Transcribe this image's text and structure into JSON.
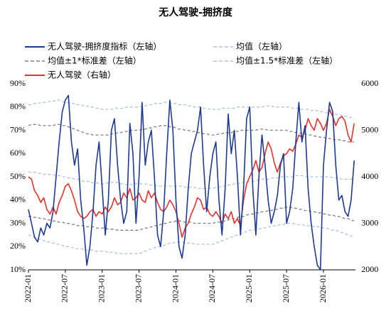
{
  "chart_data": {
    "type": "line",
    "title": "无人驾驶-拥挤度",
    "categories": [
      "2022-01",
      null,
      null,
      null,
      null,
      null,
      null,
      null,
      null,
      null,
      null,
      null,
      "2022-07",
      null,
      null,
      null,
      null,
      null,
      null,
      null,
      null,
      null,
      null,
      null,
      "2023-01",
      null,
      null,
      null,
      null,
      null,
      null,
      null,
      null,
      null,
      null,
      null,
      "2023-07",
      null,
      null,
      null,
      null,
      null,
      null,
      null,
      null,
      null,
      null,
      null,
      "2024-01",
      null,
      null,
      null,
      null,
      null,
      null,
      null,
      null,
      null,
      null,
      null,
      "2024-07",
      null,
      null,
      null,
      null,
      null,
      null,
      null,
      null,
      null,
      null,
      null,
      "2025-01",
      null,
      null,
      null,
      null,
      null,
      null,
      null,
      null,
      null,
      null,
      null,
      "2025-07",
      null,
      null,
      null,
      null,
      null,
      null,
      null,
      null,
      null,
      null,
      null,
      "2026-01",
      null,
      null,
      null,
      null,
      null,
      null,
      null,
      null,
      null,
      null
    ],
    "ylim": [
      10,
      90
    ],
    "yticks": [
      {
        "value": 10,
        "label": "10%"
      },
      {
        "value": 20,
        "label": "20%"
      },
      {
        "value": 30,
        "label": "30%"
      },
      {
        "value": 40,
        "label": "40%"
      },
      {
        "value": 50,
        "label": "50%"
      },
      {
        "value": 60,
        "label": "60%"
      },
      {
        "value": 70,
        "label": "70%"
      },
      {
        "value": 80,
        "label": "80%"
      },
      {
        "value": 90,
        "label": "90%"
      }
    ],
    "y2lim": [
      2000,
      6000
    ],
    "y2ticks": [
      2000,
      3000,
      4000,
      5000,
      6000
    ],
    "grid": false,
    "series": [
      {
        "name": "无人驾驶-拥挤度指标（左轴）",
        "color": "#1f3a93",
        "values": [
          36,
          30,
          24,
          22,
          28,
          25,
          30,
          28,
          35,
          50,
          65,
          78,
          83,
          85,
          65,
          55,
          62,
          40,
          28,
          12,
          20,
          35,
          55,
          65,
          45,
          25,
          40,
          70,
          75,
          55,
          40,
          30,
          35,
          73,
          60,
          30,
          50,
          82,
          55,
          65,
          70,
          50,
          25,
          20,
          35,
          60,
          83,
          70,
          40,
          20,
          15,
          25,
          45,
          60,
          65,
          70,
          80,
          55,
          35,
          50,
          60,
          65,
          40,
          25,
          45,
          77,
          60,
          70,
          50,
          25,
          45,
          75,
          80,
          45,
          25,
          50,
          68,
          55,
          40,
          30,
          35,
          42,
          55,
          60,
          30,
          35,
          45,
          65,
          82,
          65,
          72,
          45,
          30,
          20,
          12,
          10,
          55,
          70,
          82,
          78,
          55,
          40,
          42,
          35,
          33,
          40,
          57
        ]
      },
      {
        "name": "均值（左轴）",
        "color": "#a9c3e6",
        "dash": true,
        "values": [
          52,
          52,
          52,
          51.5,
          51.5,
          51,
          51,
          51,
          51,
          50.5,
          50.5,
          50,
          50,
          49.5,
          49.5,
          49,
          49,
          48.5,
          48,
          48,
          48,
          47.5,
          47.5,
          47,
          47,
          47,
          47.5,
          47.5,
          48,
          47.5,
          47,
          47,
          46.5,
          46.5,
          47,
          47,
          47,
          47,
          47,
          46.5,
          46.5,
          46.5,
          46,
          46,
          46,
          46,
          46,
          46,
          46,
          46,
          46,
          45.5,
          45.5,
          45.5,
          45.5,
          45,
          45,
          45,
          45,
          45,
          45,
          45.5,
          45.5,
          46,
          46,
          46.5,
          46.5,
          47,
          47,
          47.5,
          47.5,
          48,
          48,
          48,
          48.5,
          48.5,
          49,
          49,
          49,
          49.5,
          49.5,
          49.5,
          50,
          50,
          50,
          50,
          50,
          50.5,
          50.5,
          50.5,
          50,
          50,
          50,
          50,
          50,
          50,
          50,
          50,
          50,
          49.5,
          49.5,
          49.5,
          49,
          49,
          49,
          49,
          49
        ]
      },
      {
        "name": "均值±1*标准差（左轴）",
        "color": "#7f7f7f",
        "dash": true,
        "upper": [
          72,
          72.5,
          72.5,
          72.5,
          72,
          72,
          72,
          72,
          72,
          72.5,
          72.5,
          72,
          72,
          71.5,
          71,
          70.5,
          70,
          69.5,
          69,
          68.5,
          68.5,
          68,
          68,
          68,
          68,
          68,
          68,
          68.5,
          68.5,
          69,
          69,
          69.5,
          69.5,
          70,
          70,
          70,
          70,
          70.5,
          70.5,
          71,
          71,
          71.5,
          71.5,
          72,
          72,
          72,
          71.5,
          71.5,
          71,
          70.5,
          70.5,
          70,
          70,
          69.5,
          69.5,
          69,
          69,
          68.5,
          68.5,
          68,
          68,
          68,
          68.5,
          68.5,
          69,
          69,
          69,
          69.5,
          69.5,
          70,
          70,
          70,
          70,
          70,
          70,
          70.5,
          70.5,
          70.5,
          70,
          70,
          70,
          70,
          70,
          70,
          70,
          69.5,
          69.5,
          69,
          69,
          68.5,
          68.5,
          68,
          68,
          67.5,
          67.5,
          67,
          67,
          66.5,
          66.5,
          66,
          66,
          66,
          65.5,
          65.5,
          65,
          65,
          65
        ],
        "lower": [
          33,
          33,
          32.5,
          32.5,
          32,
          32,
          31.5,
          31.5,
          31,
          31,
          30.5,
          30.5,
          30,
          30,
          29.5,
          29.5,
          29,
          29,
          29,
          28.5,
          28.5,
          28.5,
          28,
          28,
          28,
          28,
          27.5,
          27.5,
          27.5,
          27,
          27,
          27,
          27,
          27,
          27,
          27,
          27,
          27.5,
          28,
          28,
          28.5,
          29,
          29,
          29.5,
          30,
          30,
          30.5,
          30.5,
          31,
          31,
          31,
          30.5,
          30.5,
          30.5,
          30,
          30,
          30,
          30,
          30,
          30,
          30,
          30.5,
          30.5,
          31,
          31,
          31.5,
          32,
          32,
          32.5,
          33,
          33,
          33.5,
          34,
          34,
          34.5,
          34.5,
          35,
          35,
          35.5,
          35.5,
          36,
          36,
          36.5,
          36.5,
          37,
          37,
          36.5,
          36.5,
          36,
          36,
          35.5,
          35.5,
          35,
          35,
          34.5,
          34.5,
          34,
          34,
          33.5,
          33.5,
          33,
          33,
          32.5,
          32,
          32,
          31.5,
          31
        ]
      },
      {
        "name": "均值±1.5*标准差（左轴）",
        "color": "#a9c3e6",
        "dash": true,
        "upper": [
          81,
          81,
          81.5,
          81.5,
          82,
          82,
          82,
          82.5,
          82.5,
          83,
          83,
          82.5,
          82,
          82,
          81.5,
          81.5,
          81,
          81,
          80.5,
          80.5,
          80,
          80,
          79.5,
          79.5,
          79,
          79,
          79,
          79,
          79.5,
          79.5,
          79.5,
          79.5,
          80,
          80,
          80,
          80,
          80,
          80.5,
          80.5,
          81,
          81,
          81.5,
          81.5,
          81.5,
          82,
          82,
          82,
          81.5,
          81.5,
          81,
          81,
          81,
          80.5,
          80.5,
          80,
          80,
          80,
          79.5,
          79.5,
          79,
          79,
          79,
          79,
          79.5,
          79.5,
          79.5,
          79.5,
          79.5,
          80,
          80,
          80,
          80,
          80,
          80,
          80,
          80,
          80,
          80.5,
          80.5,
          80.5,
          80,
          80,
          80,
          80,
          80,
          80,
          79.5,
          79.5,
          79.5,
          79,
          79,
          79,
          78.5,
          78.5,
          78.5,
          78,
          78,
          77.5,
          77.5,
          77,
          77,
          76.5,
          76.5,
          76,
          76,
          75.5,
          75
        ],
        "lower": [
          25,
          24.5,
          24,
          23.5,
          23,
          22.5,
          22,
          22,
          21.5,
          21,
          21,
          20.5,
          20,
          20,
          19.5,
          19.5,
          19,
          19,
          19,
          18.5,
          18.5,
          18.5,
          18,
          18,
          18,
          18,
          17.5,
          17.5,
          17.5,
          17,
          17,
          17,
          17,
          17,
          17,
          17,
          17,
          17.5,
          18,
          18.5,
          19,
          19.5,
          20,
          20,
          20.5,
          21,
          21.5,
          21.5,
          22,
          22,
          22,
          21.5,
          21.5,
          21.5,
          21,
          21,
          21,
          21,
          21,
          21,
          21,
          21.5,
          22,
          22.5,
          23,
          23.5,
          24,
          24.5,
          25,
          25.5,
          26,
          26.5,
          27,
          27,
          27.5,
          27.5,
          28,
          28,
          28.5,
          28.5,
          29,
          29,
          29.5,
          29.5,
          30,
          30,
          30,
          29.5,
          29.5,
          29.5,
          29,
          29,
          29,
          28.5,
          28.5,
          28.5,
          28,
          28,
          27.5,
          27,
          27,
          26.5,
          26,
          25.5,
          25,
          24.5,
          24
        ]
      },
      {
        "name": "无人驾驶（右轴）",
        "color": "#e8322a",
        "axis": "y2",
        "values": [
          4000,
          3950,
          3700,
          3600,
          3450,
          3550,
          3300,
          3200,
          3350,
          3200,
          3450,
          3600,
          3800,
          3850,
          3700,
          3500,
          3250,
          3150,
          3100,
          3150,
          3250,
          3300,
          3150,
          3250,
          3200,
          3350,
          3250,
          3350,
          3550,
          3400,
          3450,
          3650,
          3550,
          3750,
          3500,
          3550,
          3650,
          3500,
          3450,
          3700,
          3550,
          3650,
          3450,
          3300,
          3250,
          3350,
          3500,
          3400,
          3250,
          3000,
          2700,
          2900,
          3000,
          3200,
          3350,
          3550,
          3500,
          3300,
          3350,
          3200,
          3150,
          3250,
          3150,
          3000,
          3200,
          3100,
          3250,
          3000,
          3100,
          2950,
          3500,
          3850,
          4000,
          4150,
          4350,
          4100,
          4200,
          4500,
          4750,
          4600,
          4300,
          4100,
          4300,
          4450,
          4500,
          4600,
          4550,
          4700,
          4900,
          4850,
          5000,
          5250,
          5100,
          5000,
          5250,
          5150,
          5000,
          5150,
          5450,
          5300,
          5100,
          5250,
          5300,
          5200,
          4900,
          4750,
          5150
        ]
      }
    ]
  }
}
